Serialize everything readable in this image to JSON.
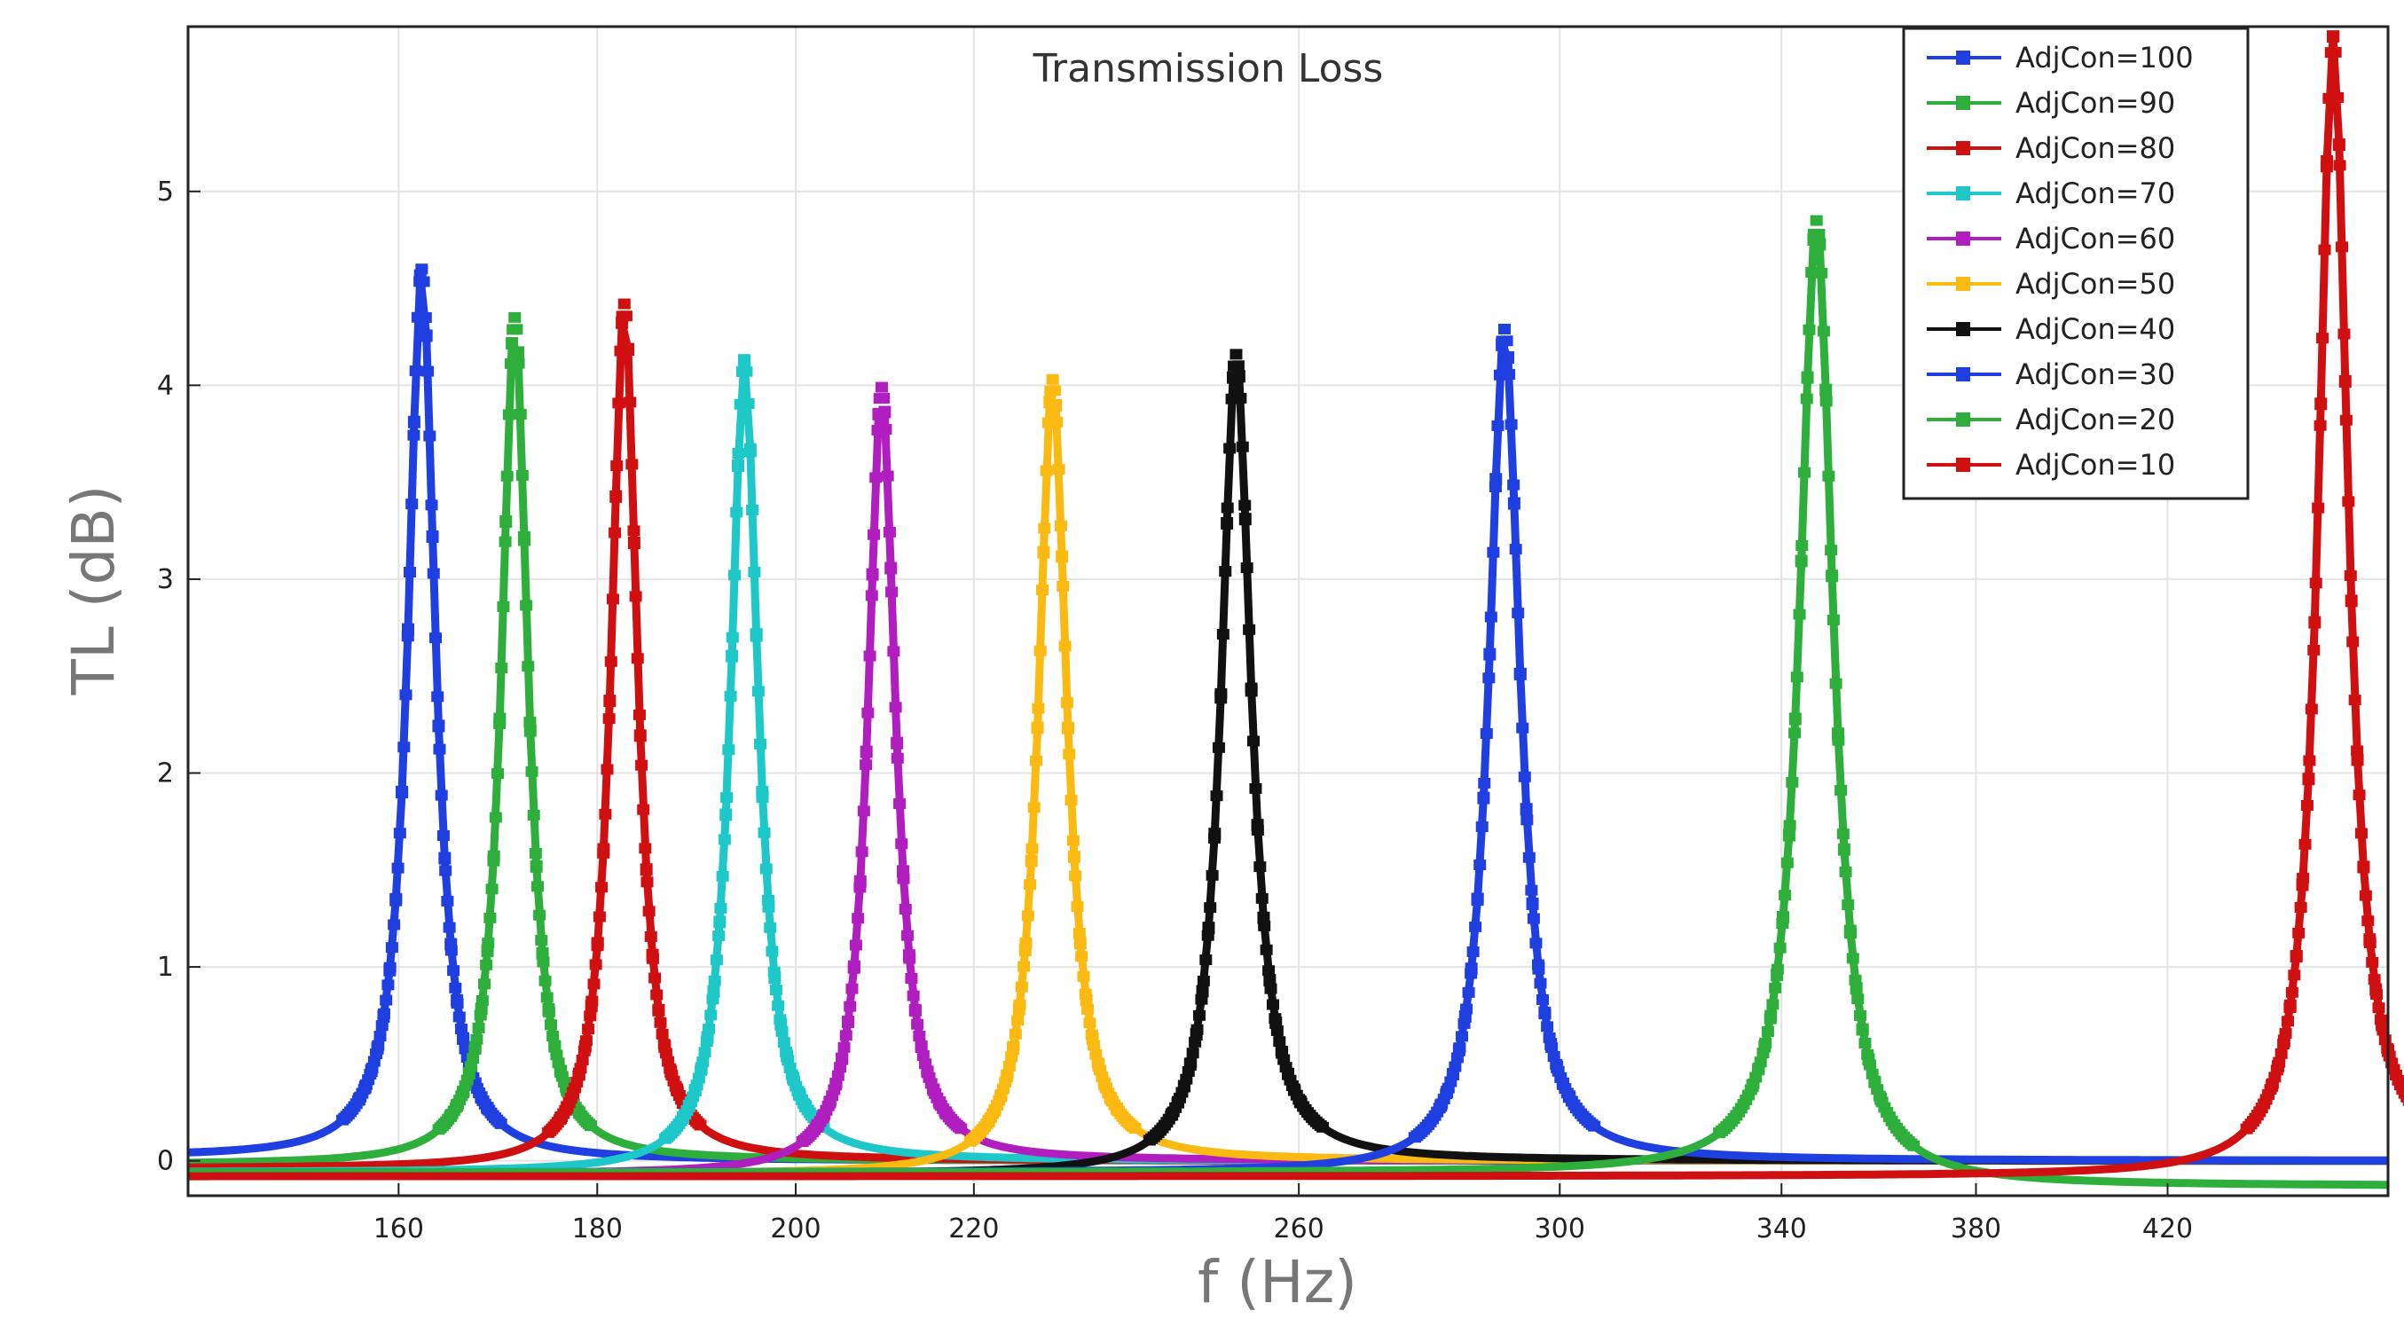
{
  "chart_data": {
    "type": "line",
    "title": "Transmission Loss",
    "xlabel": "f (Hz)",
    "ylabel": "TL (dB)",
    "xlim": [
      130,
      465
    ],
    "ylim": [
      -0.18,
      5.85
    ],
    "x_ticks": [
      {
        "label": "160",
        "pos": 0.0957
      },
      {
        "label": "180",
        "pos": 0.186
      },
      {
        "label": "200",
        "pos": 0.2762
      },
      {
        "label": "220",
        "pos": 0.3572
      },
      {
        "label": "260",
        "pos": 0.5049
      },
      {
        "label": "300",
        "pos": 0.6235
      },
      {
        "label": "340",
        "pos": 0.7243
      },
      {
        "label": "380",
        "pos": 0.8127
      },
      {
        "label": "420",
        "pos": 0.8998
      }
    ],
    "y_ticks": [
      0,
      1,
      2,
      3,
      4,
      5
    ],
    "grid": true,
    "legend_position": "top-right",
    "series": [
      {
        "name": "AdjCon=100",
        "color": "#1f3fe0",
        "peak_pos": 0.1062,
        "peak_db": 4.6,
        "hw": 0.0075,
        "tail": 0.0,
        "left_floor": 0.02
      },
      {
        "name": "AdjCon=90",
        "color": "#2eae3a",
        "peak_pos": 0.1485,
        "peak_db": 4.35,
        "hw": 0.0072,
        "tail": 0.0,
        "left_floor": -0.02
      },
      {
        "name": "AdjCon=80",
        "color": "#d01010",
        "peak_pos": 0.1983,
        "peak_db": 4.42,
        "hw": 0.0072,
        "tail": 0.0,
        "left_floor": -0.04
      },
      {
        "name": "AdjCon=70",
        "color": "#1ec8c8",
        "peak_pos": 0.2529,
        "peak_db": 4.13,
        "hw": 0.0075,
        "tail": 0.0,
        "left_floor": -0.06
      },
      {
        "name": "AdjCon=60",
        "color": "#b01ec0",
        "peak_pos": 0.3153,
        "peak_db": 3.99,
        "hw": 0.0075,
        "tail": 0.0,
        "left_floor": -0.07
      },
      {
        "name": "AdjCon=50",
        "color": "#fbba12",
        "peak_pos": 0.393,
        "peak_db": 4.03,
        "hw": 0.0078,
        "tail": 0.0,
        "left_floor": -0.07
      },
      {
        "name": "AdjCon=40",
        "color": "#111111",
        "peak_pos": 0.4764,
        "peak_db": 4.16,
        "hw": 0.0082,
        "tail": 0.0,
        "left_floor": -0.07
      },
      {
        "name": "AdjCon=30",
        "color": "#1f3fe0",
        "peak_pos": 0.5984,
        "peak_db": 4.29,
        "hw": 0.0085,
        "tail": 0.0,
        "left_floor": -0.06
      },
      {
        "name": "AdjCon=20",
        "color": "#2eae3a",
        "peak_pos": 0.7402,
        "peak_db": 4.85,
        "hw": 0.0092,
        "tail": -0.13,
        "left_floor": -0.06
      },
      {
        "name": "AdjCon=10",
        "color": "#d01010",
        "peak_pos": 0.9751,
        "peak_db": 5.8,
        "hw": 0.0082,
        "tail": 0.0,
        "left_floor": -0.08
      }
    ]
  }
}
